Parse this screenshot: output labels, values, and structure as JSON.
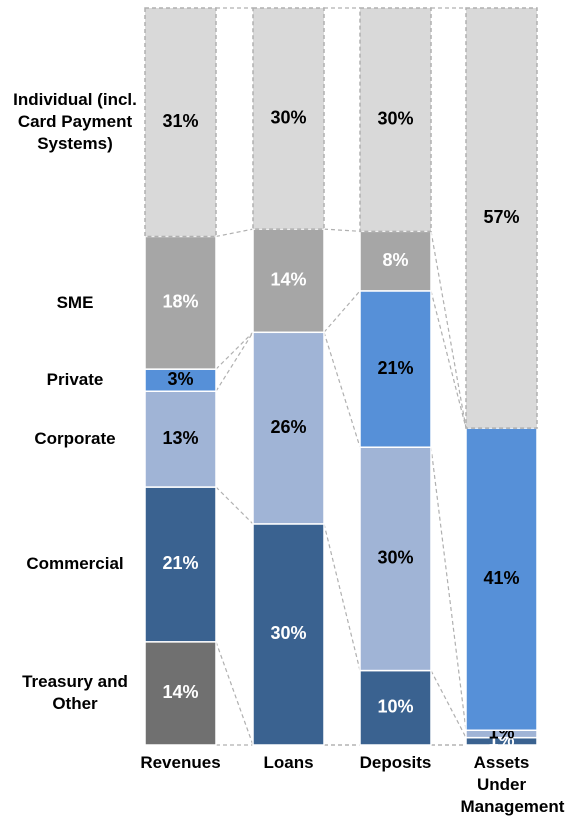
{
  "chart_data": {
    "type": "stacked_bar_100",
    "categories": [
      "Revenues",
      "Loans",
      "Deposits",
      "Assets Under Management"
    ],
    "series": [
      {
        "name": "Treasury and Other",
        "color": "#707070",
        "label_color": "#ffffff",
        "values": [
          14,
          null,
          null,
          null
        ],
        "value_labels": [
          "14%",
          null,
          null,
          null
        ]
      },
      {
        "name": "Commercial",
        "color": "#3a6290",
        "label_color": "#ffffff",
        "values": [
          21,
          30,
          10,
          1
        ],
        "value_labels": [
          "21%",
          "30%",
          "10%",
          "1%"
        ]
      },
      {
        "name": "Corporate",
        "color": "#a0b4d6",
        "label_color": "#000000",
        "values": [
          13,
          26,
          30,
          1
        ],
        "value_labels": [
          "13%",
          "26%",
          "30%",
          "1%"
        ]
      },
      {
        "name": "Private",
        "color": "#5690d8",
        "label_color": "#000000",
        "values": [
          3,
          null,
          21,
          41
        ],
        "value_labels": [
          "3%",
          null,
          "21%",
          "41%"
        ]
      },
      {
        "name": "SME",
        "color": "#a6a6a6",
        "label_color": "#ffffff",
        "values": [
          18,
          14,
          8,
          null
        ],
        "value_labels": [
          "18%",
          "14%",
          "8%",
          null
        ]
      },
      {
        "name": "Individual (incl. Card Payment Systems)",
        "color": "#d9d9d9",
        "label_color": "#000000",
        "values": [
          31,
          30,
          30,
          57
        ],
        "value_labels": [
          "31%",
          "30%",
          "30%",
          "57%"
        ]
      }
    ]
  }
}
